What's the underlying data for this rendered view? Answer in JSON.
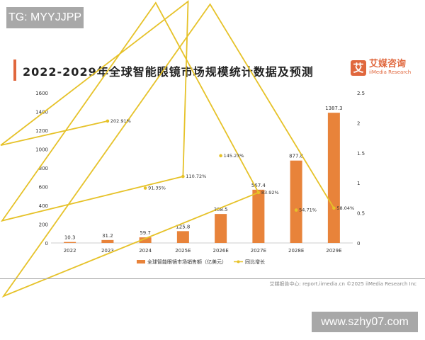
{
  "watermark_top": "TG: MYYJJPP",
  "watermark_bottom": "www.szhy07.com",
  "logo": {
    "mark": "艾",
    "cn": "艾媒咨询",
    "en": "iiMedia Research"
  },
  "footer": "艾媒报告中心: report.iimedia.cn   ©2025   iiMedia Research Inc",
  "chart_data": {
    "type": "bar+line",
    "title": "2022-2029年全球智能眼镜市场规模统计数据及预测",
    "categories": [
      "2022",
      "2023",
      "2024",
      "2025E",
      "2026E",
      "2027E",
      "2028E",
      "2029E"
    ],
    "series": [
      {
        "name": "全球智能眼镜市场销售额（亿美元）",
        "type": "bar",
        "axis": "left",
        "color": "#e8833a",
        "values": [
          10.3,
          31.2,
          59.7,
          125.8,
          308.5,
          567.4,
          877.8,
          1387.3
        ],
        "labels": [
          "10.3",
          "31.2",
          "59.7",
          "125.8",
          "308.5",
          "567.4",
          "877.8",
          "1387.3"
        ]
      },
      {
        "name": "同比增长",
        "type": "line",
        "axis": "right",
        "color": "#e6c229",
        "values": [
          null,
          2.0291,
          0.9135,
          1.1072,
          1.4523,
          0.8392,
          0.5471,
          0.5804
        ],
        "labels": [
          "",
          "202.91%",
          "91.35%",
          "110.72%",
          "145.23%",
          "83.92%",
          "54.71%",
          "58.04%"
        ]
      }
    ],
    "y_left": {
      "range": [
        0,
        1600
      ],
      "ticks": [
        0,
        200,
        400,
        600,
        800,
        1000,
        1200,
        1400,
        1600
      ]
    },
    "y_right": {
      "range": [
        0,
        2.5
      ],
      "ticks": [
        "0",
        "0.5",
        "1",
        "1.5",
        "2",
        "2.5"
      ]
    },
    "legend": "bottom",
    "grid": false
  }
}
